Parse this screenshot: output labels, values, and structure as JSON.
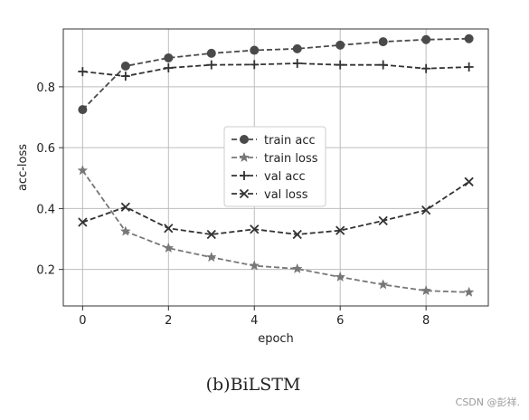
{
  "chart_data": {
    "type": "line",
    "xlabel": "epoch",
    "ylabel": "acc-loss",
    "x": [
      0,
      1,
      2,
      3,
      4,
      5,
      6,
      7,
      8,
      9
    ],
    "xlim": [
      -0.45,
      9.45
    ],
    "ylim": [
      0.08,
      0.99
    ],
    "xticks": [
      0,
      2,
      4,
      6,
      8
    ],
    "yticks": [
      0.2,
      0.4,
      0.6,
      0.8
    ],
    "ytick_labels": [
      "0.2",
      "0.4",
      "0.6",
      "0.8"
    ],
    "grid": true,
    "legend_position": "center",
    "series": [
      {
        "name": "train acc",
        "marker": "circle",
        "color": "#4a4a4a",
        "values": [
          0.725,
          0.868,
          0.895,
          0.91,
          0.92,
          0.925,
          0.937,
          0.948,
          0.955,
          0.958
        ]
      },
      {
        "name": "train loss",
        "marker": "star",
        "color": "#777777",
        "values": [
          0.525,
          0.325,
          0.27,
          0.24,
          0.212,
          0.202,
          0.175,
          0.15,
          0.13,
          0.125
        ]
      },
      {
        "name": "val acc",
        "marker": "plus",
        "color": "#333333",
        "values": [
          0.85,
          0.835,
          0.862,
          0.872,
          0.873,
          0.877,
          0.872,
          0.872,
          0.86,
          0.865
        ]
      },
      {
        "name": "val loss",
        "marker": "x",
        "color": "#333333",
        "values": [
          0.355,
          0.405,
          0.335,
          0.315,
          0.332,
          0.315,
          0.328,
          0.36,
          0.395,
          0.488
        ]
      }
    ]
  },
  "caption": "(b)BiLSTM",
  "watermark": "CSDN @彭祥."
}
